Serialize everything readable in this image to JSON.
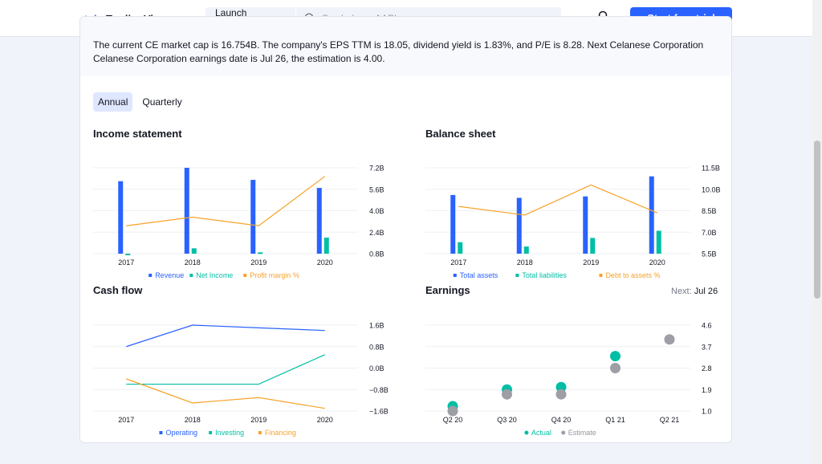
{
  "header": {
    "logo_text": "TradingView",
    "launch_label": "Launch chart",
    "search_placeholder": "Symbol, eg. AAPL",
    "cta_label": "Start free trial"
  },
  "summary": "The current CE market cap is 16.754B. The company's EPS TTM is 18.05, dividend yield is 1.83%, and P/E is 8.28. Next Celanese Corporation Celanese Corporation earnings date is Jul 26, the estimation is 4.00.",
  "tabs": [
    {
      "label": "Annual",
      "active": true
    },
    {
      "label": "Quarterly",
      "active": false
    }
  ],
  "colors": {
    "blue": "#2962ff",
    "green": "#00bfa5",
    "orange": "#f7a229",
    "gray": "#9e9ea6"
  },
  "panels": {
    "income": {
      "title": "Income statement"
    },
    "balance": {
      "title": "Balance sheet"
    },
    "cashflow": {
      "title": "Cash flow"
    },
    "earnings": {
      "title": "Earnings",
      "next_label": "Next:",
      "next_date": "Jul 26"
    }
  },
  "chart_data": [
    {
      "id": "income",
      "type": "bar",
      "title": "Income statement",
      "categories": [
        "2017",
        "2018",
        "2019",
        "2020"
      ],
      "yticks": [
        "7.2B",
        "5.6B",
        "4.0B",
        "2.4B",
        "0.8B"
      ],
      "ylim": [
        0.8,
        7.2
      ],
      "series": [
        {
          "name": "Revenue",
          "kind": "bar",
          "color": "#2962ff",
          "values": [
            6.2,
            7.2,
            6.3,
            5.7
          ]
        },
        {
          "name": "Net Income",
          "kind": "bar",
          "color": "#00bfa5",
          "values": [
            0.8,
            1.2,
            0.9,
            2.0
          ]
        },
        {
          "name": "Profit margin %",
          "kind": "line",
          "color": "#f7a229",
          "values": [
            13.0,
            17.0,
            13.0,
            36.0
          ],
          "ylim": [
            0,
            40
          ]
        }
      ]
    },
    {
      "id": "balance",
      "type": "bar",
      "title": "Balance sheet",
      "categories": [
        "2017",
        "2018",
        "2019",
        "2020"
      ],
      "yticks": [
        "11.5B",
        "10.0B",
        "8.5B",
        "7.0B",
        "5.5B"
      ],
      "ylim": [
        5.5,
        11.5
      ],
      "series": [
        {
          "name": "Total assets",
          "kind": "bar",
          "color": "#2962ff",
          "values": [
            9.6,
            9.4,
            9.5,
            10.9
          ]
        },
        {
          "name": "Total liabilities",
          "kind": "bar",
          "color": "#00bfa5",
          "values": [
            6.3,
            6.0,
            6.6,
            7.1
          ]
        },
        {
          "name": "Debt to assets %",
          "kind": "line",
          "color": "#f7a229",
          "values": [
            52,
            48,
            62,
            49
          ],
          "ylim": [
            30,
            70
          ]
        }
      ]
    },
    {
      "id": "cashflow",
      "type": "line",
      "title": "Cash flow",
      "categories": [
        "2017",
        "2018",
        "2019",
        "2020"
      ],
      "yticks": [
        "1.6B",
        "0.8B",
        "0.0B",
        "−0.8B",
        "−1.6B"
      ],
      "ylim": [
        -1.6,
        1.6
      ],
      "series": [
        {
          "name": "Operating",
          "kind": "line",
          "color": "#2962ff",
          "values": [
            0.8,
            1.6,
            1.5,
            1.4
          ]
        },
        {
          "name": "Investing",
          "kind": "line",
          "color": "#00bfa5",
          "values": [
            -0.6,
            -0.6,
            -0.6,
            0.5
          ]
        },
        {
          "name": "Financing",
          "kind": "line",
          "color": "#f7a229",
          "values": [
            -0.4,
            -1.3,
            -1.1,
            -1.5
          ]
        }
      ]
    },
    {
      "id": "earnings",
      "type": "scatter",
      "title": "Earnings",
      "categories": [
        "Q2 20",
        "Q3 20",
        "Q4 20",
        "Q1 21",
        "Q2 21"
      ],
      "yticks": [
        "4.6",
        "3.7",
        "2.8",
        "1.9",
        "1.0"
      ],
      "ylim": [
        1.0,
        4.6
      ],
      "series": [
        {
          "name": "Actual",
          "kind": "dot",
          "color": "#00bfa5",
          "values": [
            1.2,
            1.9,
            2.0,
            3.3,
            null
          ]
        },
        {
          "name": "Estimate",
          "kind": "dot",
          "color": "#9e9ea6",
          "values": [
            1.0,
            1.7,
            1.7,
            2.8,
            4.0
          ]
        }
      ]
    }
  ]
}
